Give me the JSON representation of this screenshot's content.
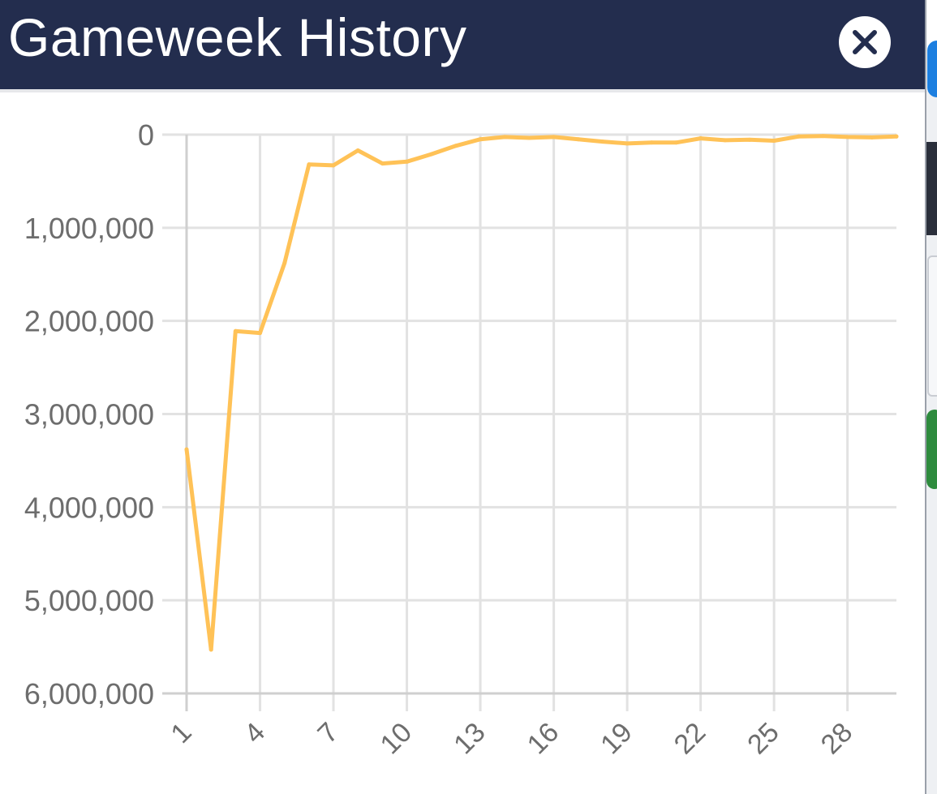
{
  "modal": {
    "title": "Gameweek History",
    "close_icon": "close-icon"
  },
  "colors": {
    "header_bg": "#232d4e",
    "line": "#ffc257",
    "grid": "#e2e2e2",
    "axis": "#cfcfcf",
    "tick_text": "#6d6d6d"
  },
  "chart_data": {
    "type": "line",
    "title": "",
    "xlabel": "",
    "ylabel": "",
    "y_reversed": true,
    "ylim": [
      0,
      6000000
    ],
    "xlim": [
      1,
      30
    ],
    "grid": true,
    "y_ticks": [
      0,
      1000000,
      2000000,
      3000000,
      4000000,
      5000000,
      6000000
    ],
    "y_tick_labels": [
      "0",
      "1,000,000",
      "2,000,000",
      "3,000,000",
      "4,000,000",
      "5,000,000",
      "6,000,000"
    ],
    "x_ticks": [
      1,
      4,
      7,
      10,
      13,
      16,
      19,
      22,
      25,
      28
    ],
    "x_tick_labels": [
      "1",
      "4",
      "7",
      "10",
      "13",
      "16",
      "19",
      "22",
      "25",
      "28"
    ],
    "series": [
      {
        "x": [
          1,
          2,
          3,
          4,
          5,
          6,
          7,
          8,
          9,
          10,
          11,
          12,
          13,
          14,
          15,
          16,
          17,
          18,
          19,
          20,
          21,
          22,
          23,
          24,
          25,
          26,
          27,
          28,
          29,
          30
        ],
        "values": [
          3380000,
          5530000,
          2110000,
          2130000,
          1380000,
          320000,
          330000,
          170000,
          310000,
          290000,
          210000,
          120000,
          50000,
          25000,
          35000,
          25000,
          50000,
          75000,
          95000,
          85000,
          85000,
          40000,
          60000,
          55000,
          65000,
          20000,
          15000,
          25000,
          30000,
          20000
        ]
      }
    ]
  }
}
